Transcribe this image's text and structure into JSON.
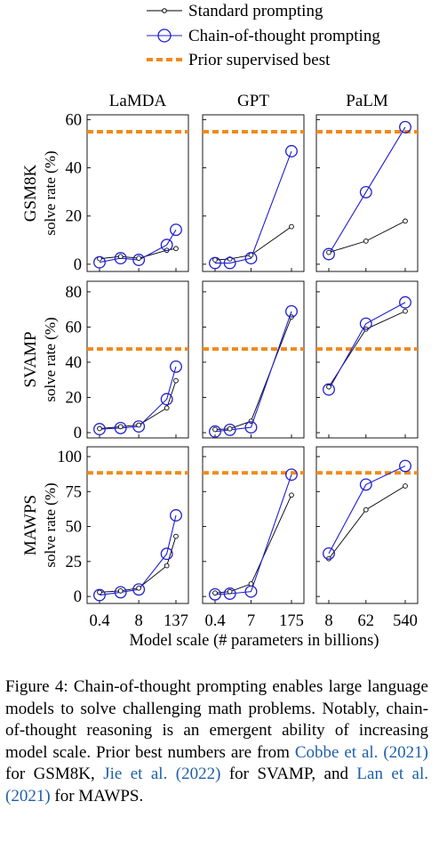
{
  "chart_data": {
    "type": "line",
    "columns": [
      "LaMDA",
      "GPT",
      "PaLM"
    ],
    "rows": [
      "GSM8K",
      "SVAMP",
      "MAWPS"
    ],
    "ylabel_suffix": "solve rate (%)",
    "xlabel": "Model scale (# parameters in billions)",
    "legend": {
      "standard": "Standard prompting",
      "cot": "Chain-of-thought prompting",
      "prior": "Prior supervised best"
    },
    "colors": {
      "standard": "#000000",
      "cot": "#1f1fd0",
      "prior": "#f08a1c"
    },
    "x_ticks": {
      "LaMDA": [
        "0.4",
        "8",
        "137"
      ],
      "GPT": [
        "0.4",
        "7",
        "175"
      ],
      "PaLM": [
        "8",
        "62",
        "540"
      ]
    },
    "x_values": {
      "LaMDA": [
        0.4,
        2,
        8,
        68,
        137
      ],
      "GPT": [
        0.4,
        1.3,
        7,
        175
      ],
      "PaLM": [
        8,
        62,
        540
      ]
    },
    "panels": [
      {
        "row": "GSM8K",
        "model": "LaMDA",
        "ylim": [
          -3,
          62
        ],
        "yticks": [
          "0",
          "20",
          "40",
          "60"
        ],
        "prior": 55,
        "standard": [
          2.3,
          3.2,
          2.5,
          5.8,
          6.5
        ],
        "cot": [
          0.8,
          2.5,
          1.8,
          8,
          14.3
        ]
      },
      {
        "row": "GSM8K",
        "model": "GPT",
        "ylim": [
          -3,
          62
        ],
        "yticks": [],
        "prior": 55,
        "standard": [
          1.8,
          2.2,
          3.8,
          15.6
        ],
        "cot": [
          0.5,
          0.5,
          2.5,
          46.9
        ]
      },
      {
        "row": "GSM8K",
        "model": "PaLM",
        "ylim": [
          -3,
          62
        ],
        "yticks": [],
        "prior": 55,
        "standard": [
          4.9,
          9.6,
          17.9
        ],
        "cot": [
          4.2,
          29.9,
          56.9
        ]
      },
      {
        "row": "SVAMP",
        "model": "LaMDA",
        "ylim": [
          -3,
          86
        ],
        "yticks": [
          "0",
          "20",
          "40",
          "60",
          "80"
        ],
        "prior": 47.5,
        "standard": [
          2.3,
          3.4,
          4.3,
          14,
          29.5
        ],
        "cot": [
          2,
          2.6,
          3.5,
          19,
          37.5
        ]
      },
      {
        "row": "SVAMP",
        "model": "GPT",
        "ylim": [
          -3,
          86
        ],
        "yticks": [],
        "prior": 47.5,
        "standard": [
          1.8,
          2.2,
          6.5,
          65.7
        ],
        "cot": [
          0.6,
          1.6,
          3,
          68.9
        ]
      },
      {
        "row": "SVAMP",
        "model": "PaLM",
        "ylim": [
          -3,
          86
        ],
        "yticks": [],
        "prior": 47.5,
        "standard": [
          26,
          58.8,
          69
        ],
        "cot": [
          24.5,
          61.9,
          74
        ]
      },
      {
        "row": "MAWPS",
        "model": "LaMDA",
        "ylim": [
          -5,
          107
        ],
        "yticks": [
          "0",
          "25",
          "50",
          "75",
          "100"
        ],
        "prior": 88.4,
        "standard": [
          3,
          4,
          6,
          22,
          43
        ],
        "cot": [
          1,
          3,
          5,
          30.5,
          58
        ]
      },
      {
        "row": "MAWPS",
        "model": "GPT",
        "ylim": [
          -5,
          107
        ],
        "yticks": [],
        "prior": 88.4,
        "standard": [
          2.5,
          3.5,
          9,
          72.5
        ],
        "cot": [
          1.5,
          2,
          3.5,
          87.1
        ]
      },
      {
        "row": "MAWPS",
        "model": "PaLM",
        "ylim": [
          -5,
          107
        ],
        "yticks": [],
        "prior": 88.4,
        "standard": [
          27,
          62,
          79
        ],
        "cot": [
          30.7,
          80,
          93.3
        ]
      }
    ]
  },
  "caption": {
    "lead": "Figure 4:   Chain-of-thought prompting enables large language models to solve challenging math problems.  Notably, chain-of-thought reasoning is an emergent ability of increasing model scale. Prior best numbers are from ",
    "cite1": "Cobbe et al. (2021)",
    "mid1": " for GSM8K, ",
    "cite2": "Jie et al. (2022)",
    "mid2": " for SVAMP, and ",
    "cite3": "Lan et al. (2021)",
    "tail": " for MAWPS."
  }
}
